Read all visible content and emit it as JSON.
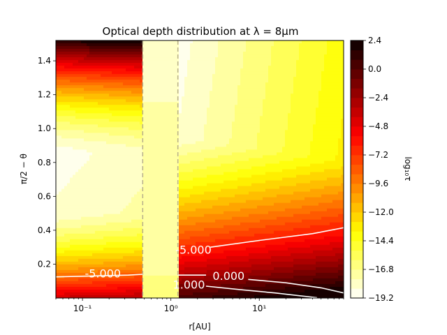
{
  "chart_data": {
    "type": "heatmap",
    "title": "Optical depth distribution at λ = 8μm",
    "xlabel": "r[AU]",
    "ylabel": "π/2 − θ",
    "colorbar_label": "log₁₀τ",
    "x_scale": "log",
    "xlim": [
      0.05,
      90
    ],
    "ylim": [
      0.0,
      1.52
    ],
    "x_ticks": [
      {
        "value": 0.1,
        "label": "10⁻¹"
      },
      {
        "value": 1,
        "label": "10⁰"
      },
      {
        "value": 10,
        "label": "10¹"
      }
    ],
    "y_ticks": [
      {
        "value": 0.2,
        "label": "0.2"
      },
      {
        "value": 0.4,
        "label": "0.4"
      },
      {
        "value": 0.6,
        "label": "0.6"
      },
      {
        "value": 0.8,
        "label": "0.8"
      },
      {
        "value": 1.0,
        "label": "1.0"
      },
      {
        "value": 1.2,
        "label": "1.2"
      },
      {
        "value": 1.4,
        "label": "1.4"
      }
    ],
    "colorbar": {
      "range": [
        -19.2,
        2.4
      ],
      "levels": 27,
      "ticks": [
        {
          "value": 2.4,
          "label": "2.4"
        },
        {
          "value": 0.0,
          "label": "0.0"
        },
        {
          "value": -2.4,
          "label": "−2.4"
        },
        {
          "value": -4.8,
          "label": "−4.8"
        },
        {
          "value": -7.2,
          "label": "−7.2"
        },
        {
          "value": -9.6,
          "label": "−9.6"
        },
        {
          "value": -12.0,
          "label": "−12.0"
        },
        {
          "value": -14.4,
          "label": "−14.4"
        },
        {
          "value": -16.8,
          "label": "−16.8"
        },
        {
          "value": -19.2,
          "label": "−19.2"
        }
      ],
      "colormap": "hot_r"
    },
    "dashed_lines_x": [
      0.48,
      1.2
    ],
    "gap_region_x": [
      0.48,
      1.2
    ],
    "contours": [
      {
        "level": -5.0,
        "label": "-5.000",
        "label_x": 0.17,
        "label_y": 0.14,
        "segments": [
          [
            [
              0.05,
              0.125
            ],
            [
              0.33,
              0.135
            ],
            [
              0.48,
              0.14
            ]
          ],
          [
            [
              2.8,
              0.3
            ],
            [
              10,
              0.34
            ],
            [
              40,
              0.38
            ],
            [
              90,
              0.415
            ]
          ]
        ]
      },
      {
        "level": -5.0,
        "label": "-5.000",
        "label_x": 1.8,
        "label_y": 0.28,
        "segments": []
      },
      {
        "level": 0.0,
        "label": "0.000",
        "label_x": 4.5,
        "label_y": 0.125,
        "segments": [
          [
            [
              1.2,
              0.135
            ],
            [
              2.5,
              0.135
            ]
          ],
          [
            [
              7.5,
              0.11
            ],
            [
              20,
              0.09
            ],
            [
              50,
              0.06
            ],
            [
              90,
              0.03
            ]
          ]
        ]
      },
      {
        "level": 1.0,
        "label": "1.000",
        "label_x": 1.6,
        "label_y": 0.075,
        "segments": [
          [
            [
              2.5,
              0.07
            ],
            [
              6,
              0.05
            ],
            [
              15,
              0.03
            ],
            [
              30,
              0.012
            ],
            [
              45,
              0.002
            ]
          ]
        ]
      }
    ],
    "field_note": "log10(tau): increases with r, decreases with height; gap region (0.48–1.2 AU) is nearly uniform at about -17"
  }
}
